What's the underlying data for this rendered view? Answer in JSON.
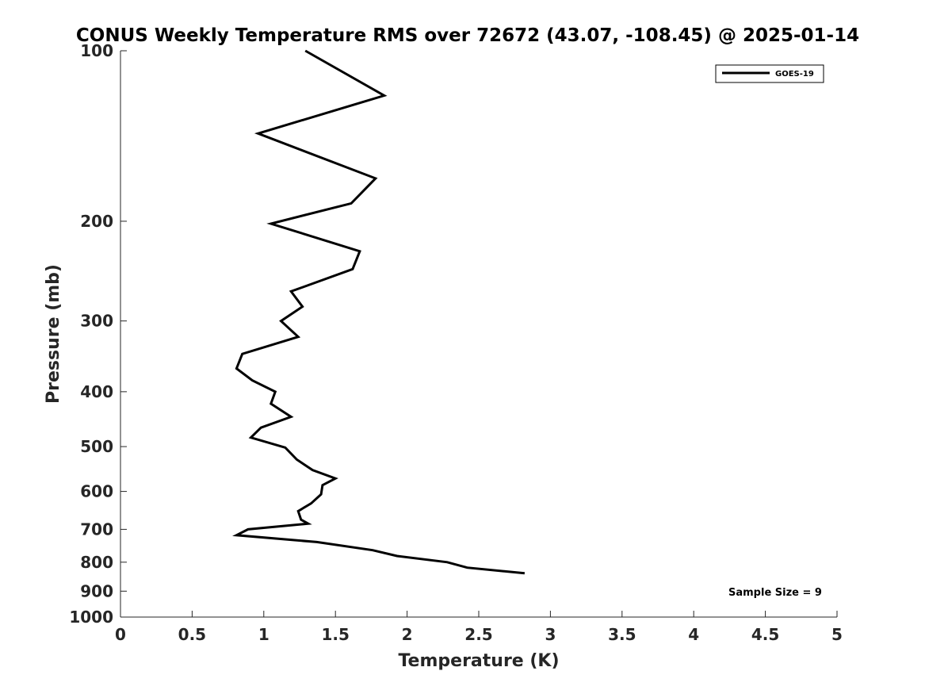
{
  "chart_data": {
    "type": "line",
    "title": "CONUS Weekly Temperature RMS over 72672 (43.07, -108.45) @ 2025-01-14",
    "xlabel": "Temperature (K)",
    "ylabel": "Pressure (mb)",
    "xlim": [
      0,
      5
    ],
    "ylim": [
      100,
      1000
    ],
    "y_scale": "log",
    "y_reversed": true,
    "grid": false,
    "x_ticks": [
      "0",
      "0.5",
      "1",
      "1.5",
      "2",
      "2.5",
      "3",
      "3.5",
      "4",
      "4.5",
      "5"
    ],
    "y_ticks": [
      "100",
      "200",
      "300",
      "400",
      "500",
      "600",
      "700",
      "800",
      "900",
      "1000"
    ],
    "legend_position": "top-right",
    "annotation": "Sample Size = 9",
    "series": [
      {
        "name": "GOES-19",
        "color": "#000000",
        "points": [
          [
            1.29,
            100
          ],
          [
            1.84,
            120
          ],
          [
            0.96,
            140
          ],
          [
            1.78,
            168
          ],
          [
            1.61,
            186
          ],
          [
            1.05,
            202
          ],
          [
            1.67,
            226
          ],
          [
            1.62,
            243
          ],
          [
            1.19,
            266
          ],
          [
            1.27,
            283
          ],
          [
            1.12,
            300
          ],
          [
            1.24,
            320
          ],
          [
            0.85,
            343
          ],
          [
            0.81,
            364
          ],
          [
            0.92,
            382
          ],
          [
            1.08,
            400
          ],
          [
            1.05,
            420
          ],
          [
            1.19,
            443
          ],
          [
            0.98,
            463
          ],
          [
            0.91,
            482
          ],
          [
            1.15,
            502
          ],
          [
            1.23,
            527
          ],
          [
            1.34,
            550
          ],
          [
            1.5,
            569
          ],
          [
            1.41,
            585
          ],
          [
            1.4,
            607
          ],
          [
            1.33,
            630
          ],
          [
            1.24,
            650
          ],
          [
            1.26,
            673
          ],
          [
            1.31,
            684
          ],
          [
            0.89,
            700
          ],
          [
            0.81,
            717
          ],
          [
            1.37,
            737
          ],
          [
            1.76,
            762
          ],
          [
            1.93,
            780
          ],
          [
            2.28,
            800
          ],
          [
            2.42,
            818
          ],
          [
            2.82,
            837
          ]
        ]
      }
    ]
  }
}
